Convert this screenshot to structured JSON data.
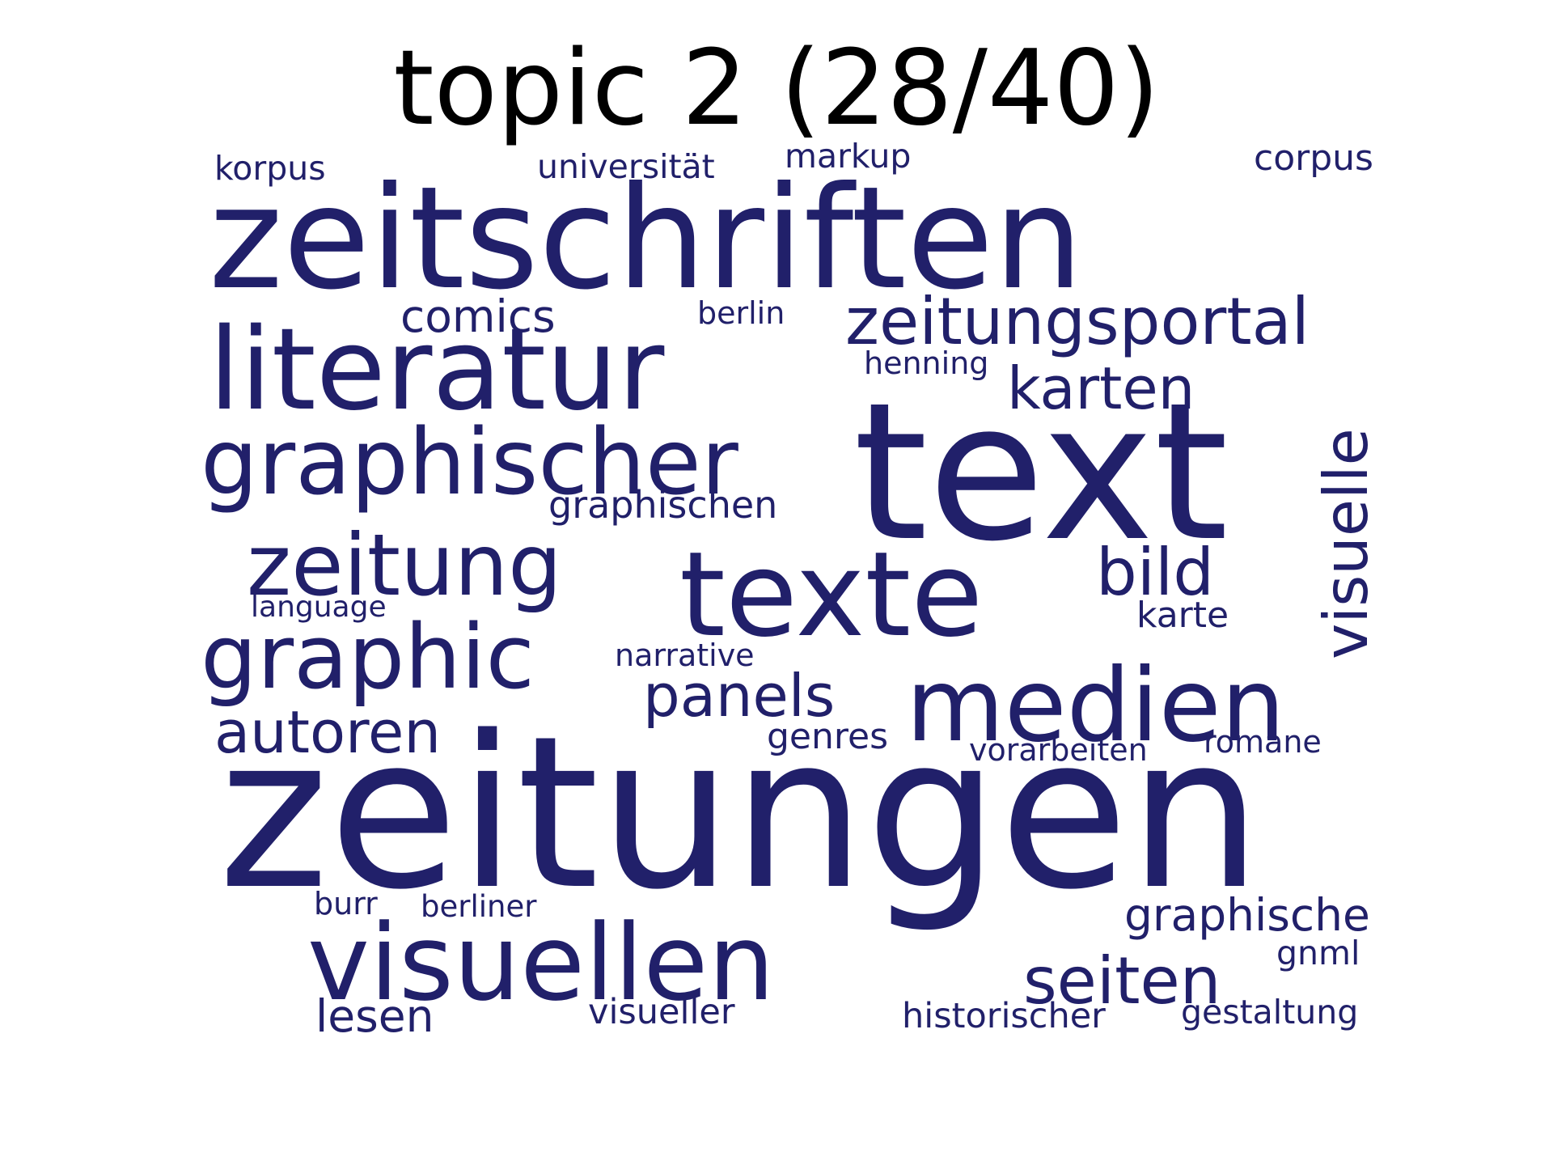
{
  "title": "topic 2 (28/40)",
  "word_color": "#21206a",
  "words": [
    {
      "text": "zeitungen",
      "weight": 1.0
    },
    {
      "text": "text",
      "weight": 0.95
    },
    {
      "text": "zeitschriften",
      "weight": 0.8
    },
    {
      "text": "texte",
      "weight": 0.7
    },
    {
      "text": "literatur",
      "weight": 0.65
    },
    {
      "text": "medien",
      "weight": 0.58
    },
    {
      "text": "visuellen",
      "weight": 0.55
    },
    {
      "text": "graphischer",
      "weight": 0.5
    },
    {
      "text": "zeitung",
      "weight": 0.48
    },
    {
      "text": "graphic",
      "weight": 0.48
    },
    {
      "text": "zeitungsportal",
      "weight": 0.36
    },
    {
      "text": "visuelle",
      "weight": 0.35
    },
    {
      "text": "seiten",
      "weight": 0.34
    },
    {
      "text": "bild",
      "weight": 0.34
    },
    {
      "text": "panels",
      "weight": 0.3
    },
    {
      "text": "karten",
      "weight": 0.3
    },
    {
      "text": "autoren",
      "weight": 0.3
    },
    {
      "text": "graphische",
      "weight": 0.25
    },
    {
      "text": "comics",
      "weight": 0.24
    },
    {
      "text": "lesen",
      "weight": 0.24
    },
    {
      "text": "graphischen",
      "weight": 0.2
    },
    {
      "text": "corpus",
      "weight": 0.19
    },
    {
      "text": "genres",
      "weight": 0.18
    },
    {
      "text": "karte",
      "weight": 0.18
    },
    {
      "text": "historischer",
      "weight": 0.18
    },
    {
      "text": "visueller",
      "weight": 0.18
    },
    {
      "text": "universität",
      "weight": 0.18
    },
    {
      "text": "korpus",
      "weight": 0.17
    },
    {
      "text": "markup",
      "weight": 0.17
    },
    {
      "text": "gestaltung",
      "weight": 0.17
    },
    {
      "text": "narrative",
      "weight": 0.17
    },
    {
      "text": "vorarbeiten",
      "weight": 0.17
    },
    {
      "text": "gnml",
      "weight": 0.17
    },
    {
      "text": "henning",
      "weight": 0.16
    },
    {
      "text": "romane",
      "weight": 0.16
    },
    {
      "text": "burr",
      "weight": 0.16
    },
    {
      "text": "berliner",
      "weight": 0.16
    },
    {
      "text": "berlin",
      "weight": 0.16
    },
    {
      "text": "language",
      "weight": 0.15
    }
  ]
}
